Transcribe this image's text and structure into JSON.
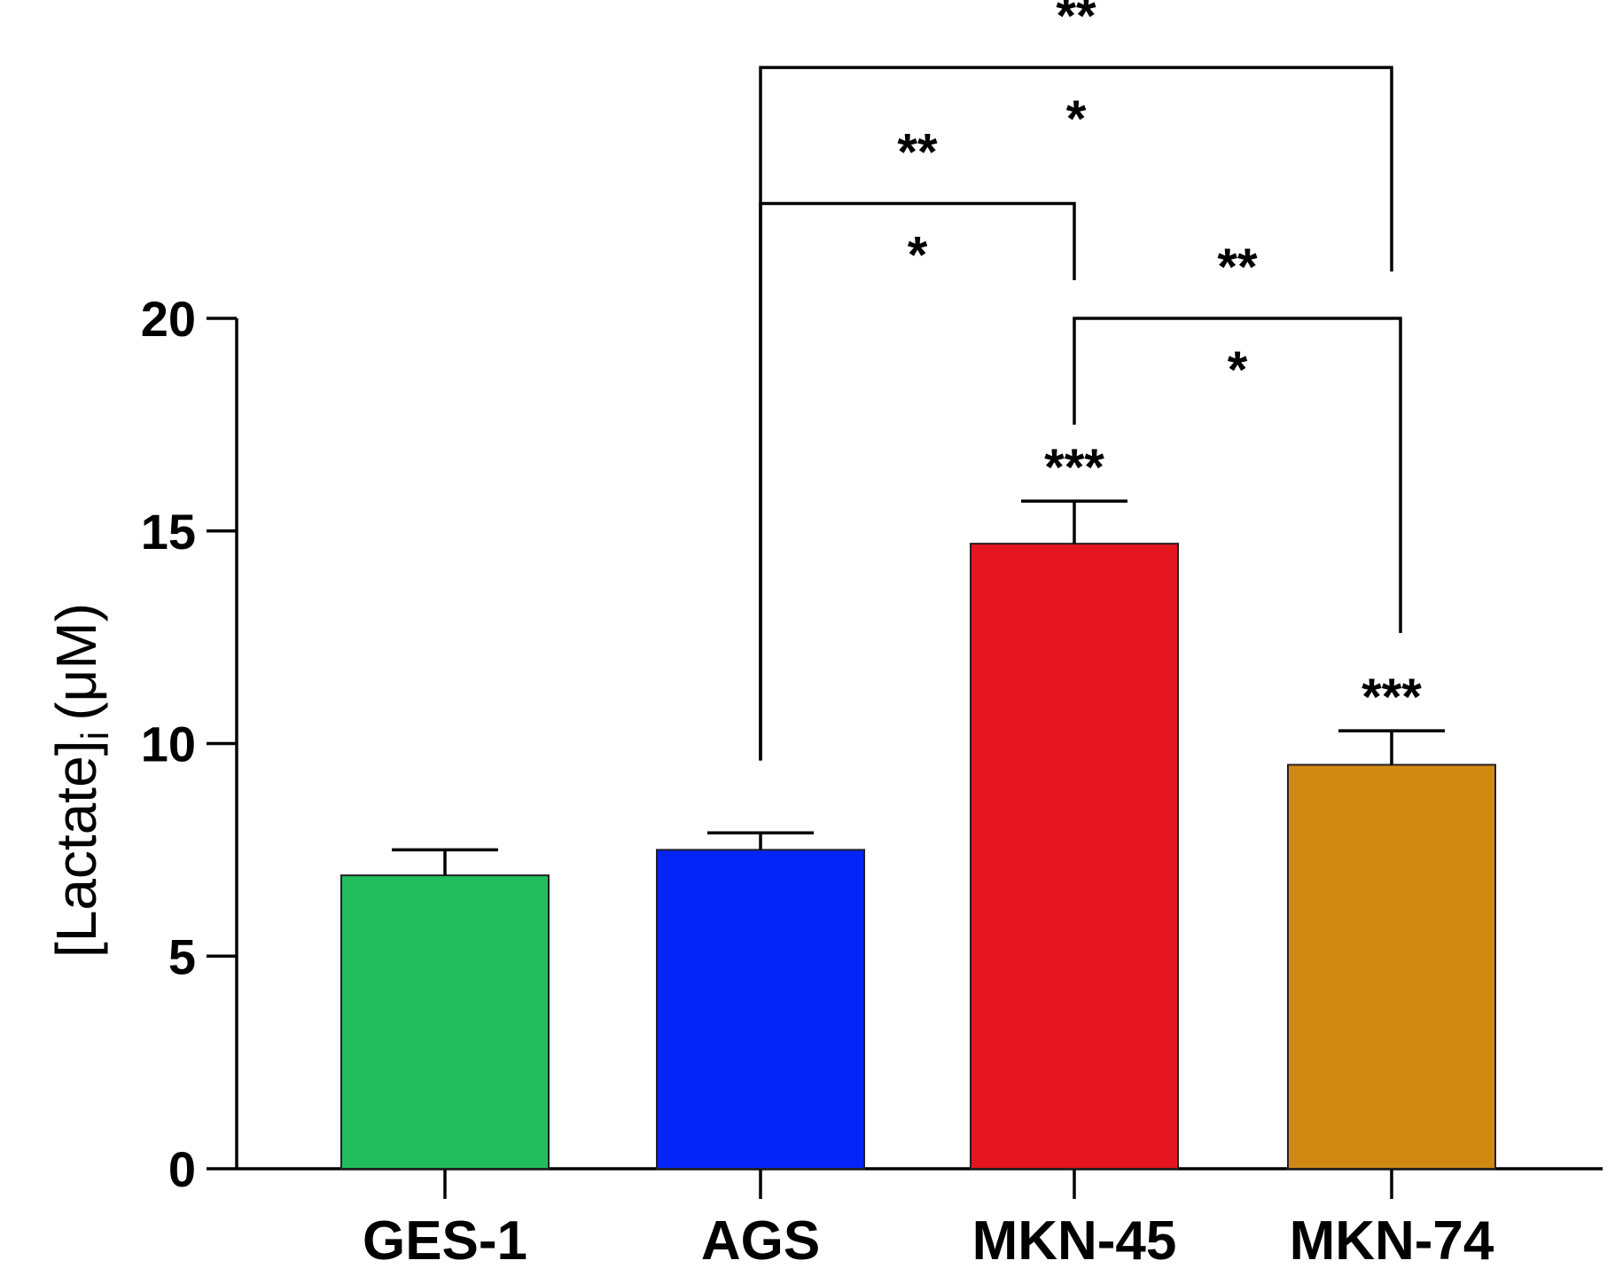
{
  "chart_data": {
    "type": "bar",
    "title": "",
    "xlabel": "",
    "ylabel": "[Lactate]",
    "ylabel_subscript": "i",
    "ylabel_unit": "(μM)",
    "ylim": [
      0,
      20
    ],
    "yticks": [
      0,
      5,
      10,
      15,
      20
    ],
    "categories": [
      "GES-1",
      "AGS",
      "MKN-45",
      "MKN-74"
    ],
    "values": [
      6.9,
      7.5,
      14.7,
      9.5
    ],
    "errors": [
      0.6,
      0.4,
      1.0,
      0.8
    ],
    "colors": [
      "#22be5e",
      "#0424f8",
      "#e51520",
      "#d08a14"
    ],
    "bar_annotations": [
      "",
      "",
      "***",
      "***"
    ],
    "comparisons": [
      {
        "from": "AGS",
        "to": "MKN-45",
        "label_top": "**",
        "label_bottom": "*",
        "level": 22.7
      },
      {
        "from": "AGS",
        "to": "MKN-74",
        "label_top": "**",
        "label_bottom": "*",
        "level": 25.9
      },
      {
        "from": "MKN-45",
        "to": "MKN-74",
        "label_top": "**",
        "label_bottom": "*",
        "level": 20.0
      }
    ]
  }
}
